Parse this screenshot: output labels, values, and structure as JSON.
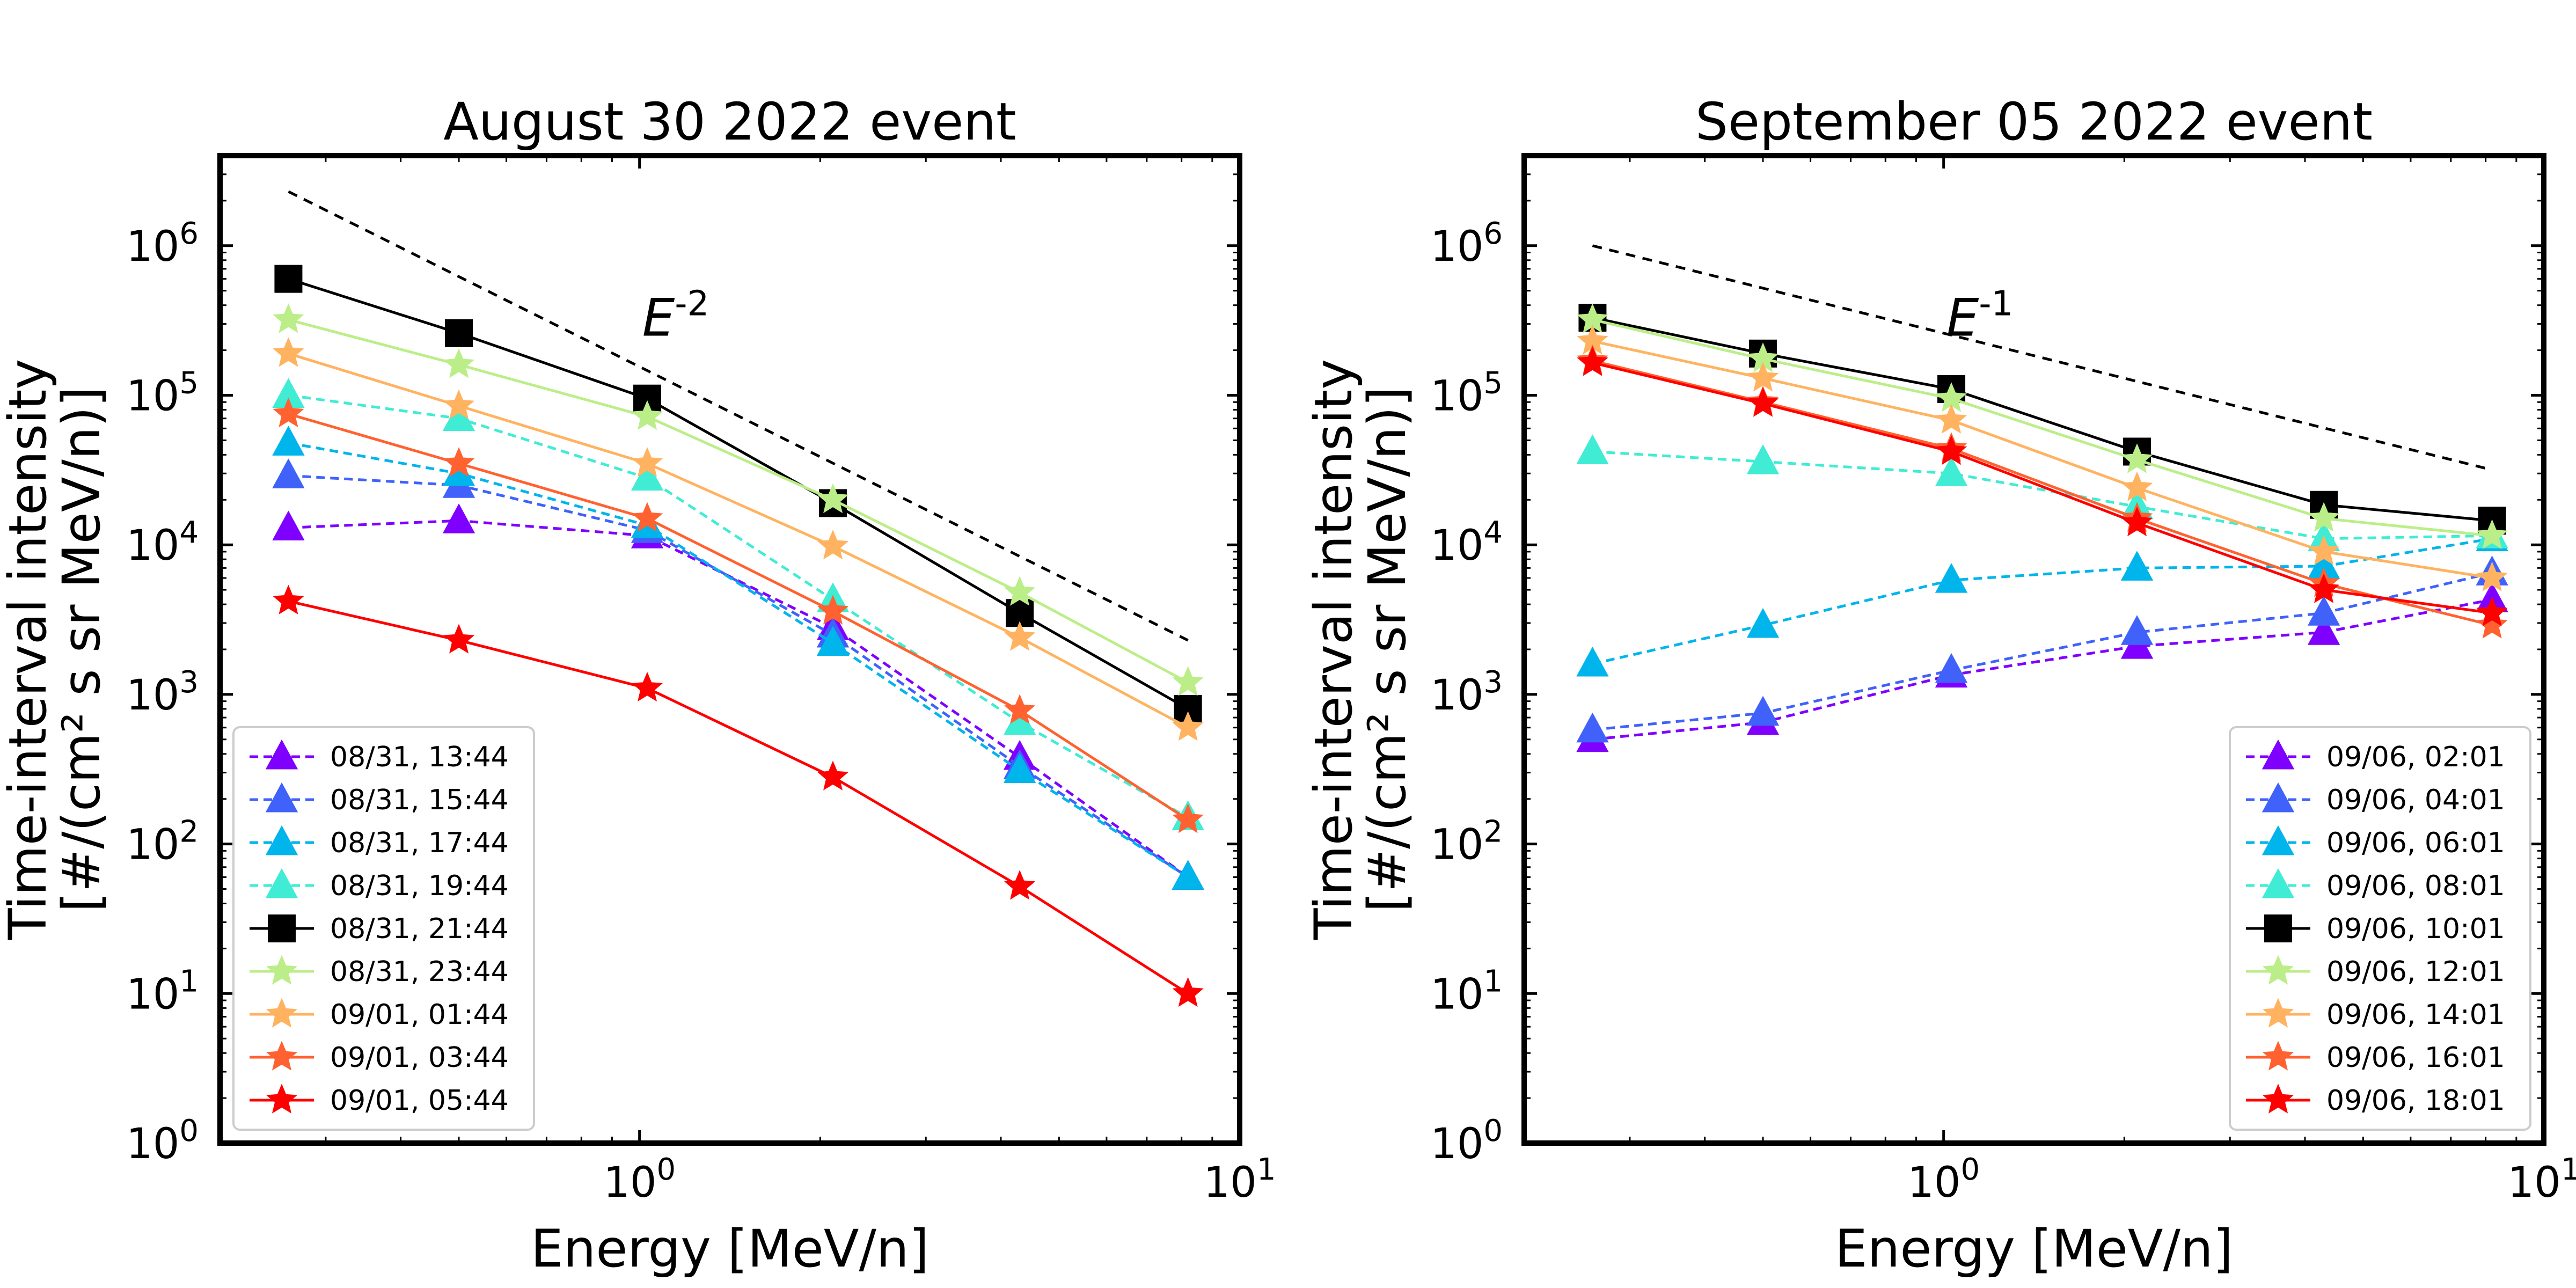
{
  "chart_data": [
    {
      "type": "line",
      "title": "August 30 2022 event",
      "xlabel": "Energy [MeV/n]",
      "ylabel_line1": "Time-interval intensity",
      "ylabel_line2": "[#/(cm² s sr MeV/n)]",
      "xscale": "log",
      "yscale": "log",
      "xlim": [
        0.2,
        10
      ],
      "ylim": [
        1,
        4000000
      ],
      "x_tick_labels": [
        "10^0",
        "10^1"
      ],
      "y_tick_labels": [
        "10^0",
        "10^1",
        "10^2",
        "10^3",
        "10^4",
        "10^5",
        "10^6"
      ],
      "legend_position": "lower-left",
      "reference_line": {
        "label": "E^-2",
        "x": [
          0.26,
          8.2
        ],
        "y": [
          2300000,
          2300
        ]
      },
      "x": [
        0.26,
        0.5,
        1.03,
        2.1,
        4.3,
        8.2
      ],
      "series": [
        {
          "name": "08/31, 13:44",
          "color": "#8000ff",
          "marker": "triangle",
          "linestyle": "dashed",
          "values": [
            13000,
            14500,
            11500,
            2800,
            380,
            60
          ]
        },
        {
          "name": "08/31, 15:44",
          "color": "#4062fa",
          "marker": "triangle",
          "linestyle": "dashed",
          "values": [
            29000,
            25000,
            12500,
            2500,
            330,
            60
          ]
        },
        {
          "name": "08/31, 17:44",
          "color": "#00b5eb",
          "marker": "triangle",
          "linestyle": "dashed",
          "values": [
            48000,
            30000,
            13500,
            2200,
            310,
            60
          ]
        },
        {
          "name": "08/31, 19:44",
          "color": "#40ecd4",
          "marker": "triangle",
          "linestyle": "dashed",
          "values": [
            100000,
            70000,
            28000,
            4300,
            650,
            150
          ]
        },
        {
          "name": "08/31, 21:44",
          "color": "#000000",
          "marker": "square",
          "linestyle": "solid",
          "values": [
            600000,
            260000,
            95000,
            19000,
            3500,
            800
          ]
        },
        {
          "name": "08/31, 23:44",
          "color": "#bbee88",
          "marker": "star",
          "linestyle": "solid",
          "values": [
            320000,
            160000,
            72000,
            20000,
            4800,
            1200
          ]
        },
        {
          "name": "09/01, 01:44",
          "color": "#ffb360",
          "marker": "star",
          "linestyle": "solid",
          "values": [
            190000,
            85000,
            35000,
            9800,
            2400,
            600
          ]
        },
        {
          "name": "09/01, 03:44",
          "color": "#ff6230",
          "marker": "star",
          "linestyle": "solid",
          "values": [
            75000,
            35000,
            15000,
            3600,
            780,
            145
          ]
        },
        {
          "name": "09/01, 05:44",
          "color": "#ff0000",
          "marker": "star",
          "linestyle": "solid",
          "values": [
            4200,
            2300,
            1100,
            280,
            52,
            10
          ]
        }
      ]
    },
    {
      "type": "line",
      "title": "September 05 2022 event",
      "xlabel": "Energy [MeV/n]",
      "ylabel_line1": "Time-interval intensity",
      "ylabel_line2": "[#/(cm² s sr MeV/n)]",
      "xscale": "log",
      "yscale": "log",
      "xlim": [
        0.2,
        10
      ],
      "ylim": [
        1,
        4000000
      ],
      "x_tick_labels": [
        "10^0",
        "10^1"
      ],
      "y_tick_labels": [
        "10^0",
        "10^1",
        "10^2",
        "10^3",
        "10^4",
        "10^5",
        "10^6"
      ],
      "legend_position": "lower-right",
      "reference_line": {
        "label": "E^-1",
        "x": [
          0.26,
          8.2
        ],
        "y": [
          1000000,
          31700
        ]
      },
      "x": [
        0.26,
        0.5,
        1.03,
        2.1,
        4.3,
        8.2
      ],
      "series": [
        {
          "name": "09/06, 02:01",
          "color": "#8000ff",
          "marker": "triangle",
          "linestyle": "dashed",
          "values": [
            500,
            650,
            1350,
            2100,
            2600,
            4300
          ]
        },
        {
          "name": "09/06, 04:01",
          "color": "#4062fa",
          "marker": "triangle",
          "linestyle": "dashed",
          "values": [
            580,
            750,
            1450,
            2600,
            3500,
            6500
          ]
        },
        {
          "name": "09/06, 06:01",
          "color": "#00b5eb",
          "marker": "triangle",
          "linestyle": "dashed",
          "values": [
            1600,
            2900,
            5800,
            7000,
            7200,
            11000
          ]
        },
        {
          "name": "09/06, 08:01",
          "color": "#40ecd4",
          "marker": "triangle",
          "linestyle": "dashed",
          "values": [
            42000,
            36000,
            30000,
            18000,
            11000,
            11500
          ]
        },
        {
          "name": "09/06, 10:01",
          "color": "#000000",
          "marker": "square",
          "linestyle": "solid",
          "values": [
            330000,
            190000,
            110000,
            42000,
            18500,
            14500
          ]
        },
        {
          "name": "09/06, 12:01",
          "color": "#bbee88",
          "marker": "star",
          "linestyle": "solid",
          "values": [
            320000,
            175000,
            95000,
            37000,
            15000,
            11500
          ]
        },
        {
          "name": "09/06, 14:01",
          "color": "#ffb360",
          "marker": "star",
          "linestyle": "solid",
          "values": [
            230000,
            130000,
            68000,
            24000,
            9000,
            6000
          ]
        },
        {
          "name": "09/06, 16:01",
          "color": "#ff6230",
          "marker": "star",
          "linestyle": "solid",
          "values": [
            170000,
            90000,
            44000,
            15000,
            5500,
            2900
          ]
        },
        {
          "name": "09/06, 18:01",
          "color": "#ff0000",
          "marker": "star",
          "linestyle": "solid",
          "values": [
            165000,
            88000,
            42000,
            14000,
            5000,
            3500
          ]
        }
      ]
    }
  ]
}
